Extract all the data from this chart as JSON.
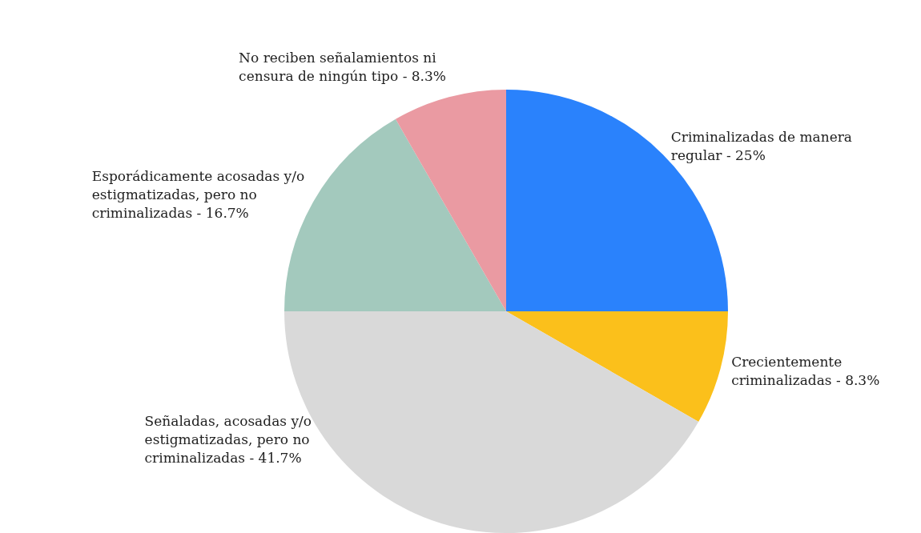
{
  "chart_data": {
    "type": "pie",
    "categories": [
      "Criminalizadas de manera regular - 25%",
      "Crecientemente criminalizadas - 8.3%",
      "Señaladas, acosadas y/o estigmatizadas, pero no criminalizadas - 41.7%",
      "Esporádicamente acosadas y/o estigmatizadas, pero no criminalizadas - 16.7%",
      "No reciben señalamientos ni censura de ningún tipo - 8.3%"
    ],
    "values": [
      25,
      8.3,
      41.7,
      16.7,
      8.3
    ],
    "colors": [
      "#2a82fc",
      "#fbc01b",
      "#d9d9d9",
      "#a3c9bd",
      "#ea9aa2"
    ],
    "legend": false
  }
}
